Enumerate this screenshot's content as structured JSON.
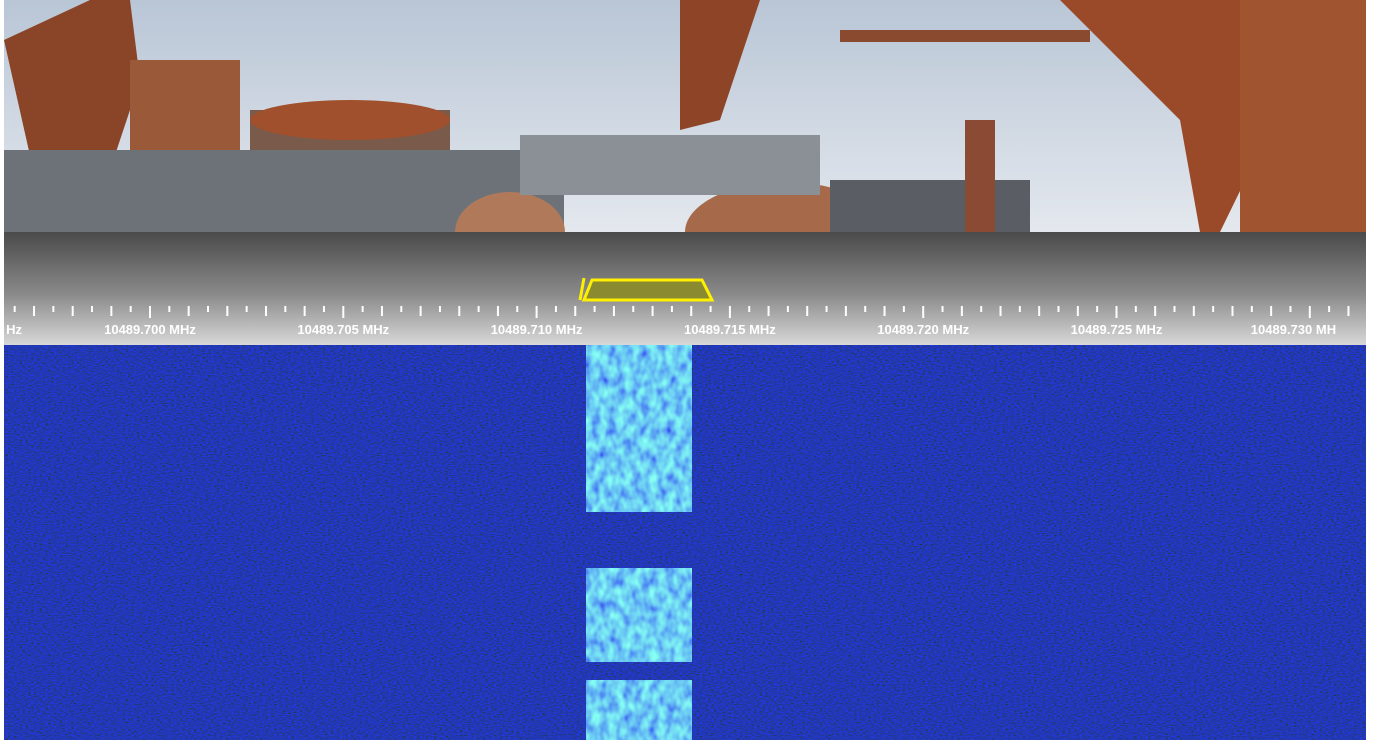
{
  "scale": {
    "labels": [
      "Hz",
      "10489.700 MHz",
      "10489.705 MHz",
      "10489.710 MHz",
      "10489.715 MHz",
      "10489.720 MHz",
      "10489.725 MHz",
      "10489.730 MH"
    ]
  }
}
